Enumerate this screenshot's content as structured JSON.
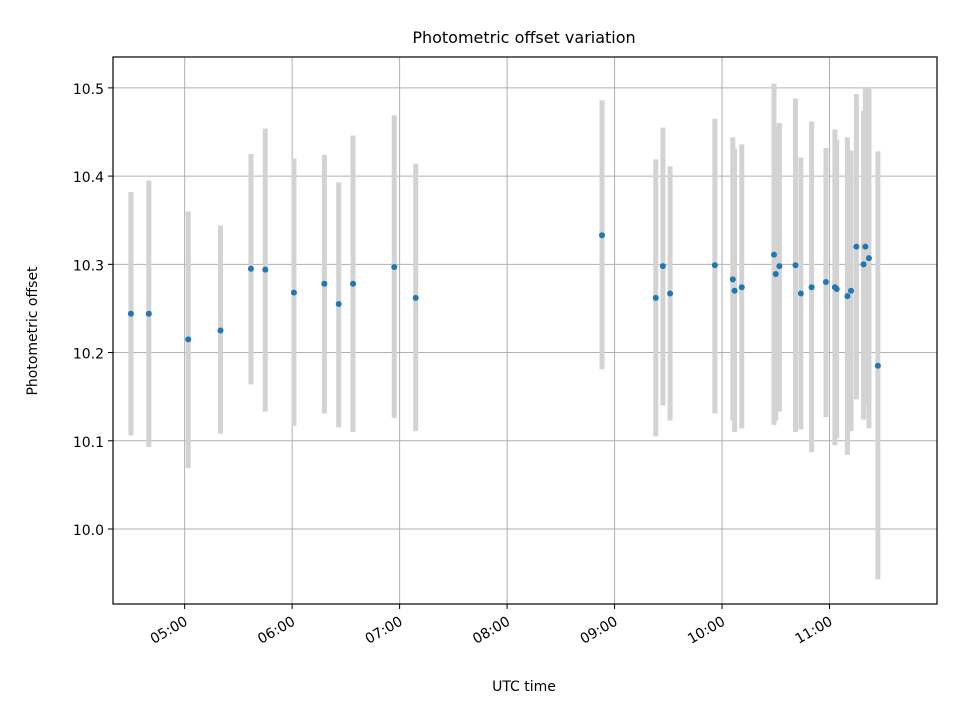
{
  "chart_data": {
    "type": "scatter",
    "title": "Photometric offset variation",
    "xlabel": "UTC time",
    "ylabel": "Photometric offset",
    "x_format": "HH:MM",
    "xlim": [
      "04:20",
      "12:00"
    ],
    "ylim": [
      9.915,
      10.535
    ],
    "x_ticks": [
      "05:00",
      "06:00",
      "07:00",
      "08:00",
      "09:00",
      "10:00",
      "11:00"
    ],
    "y_ticks": [
      10.0,
      10.1,
      10.2,
      10.3,
      10.4,
      10.5
    ],
    "grid": true,
    "series": [
      {
        "marker_color": "#1f77b4",
        "errorbar_color": "#d3d3d3",
        "points": [
          {
            "t": "04:30",
            "y": 10.244,
            "lo": 10.106,
            "hi": 10.382
          },
          {
            "t": "04:40",
            "y": 10.244,
            "lo": 10.093,
            "hi": 10.395
          },
          {
            "t": "05:02",
            "y": 10.215,
            "lo": 10.069,
            "hi": 10.36
          },
          {
            "t": "05:20",
            "y": 10.225,
            "lo": 10.108,
            "hi": 10.344
          },
          {
            "t": "05:37",
            "y": 10.295,
            "lo": 10.164,
            "hi": 10.425
          },
          {
            "t": "05:45",
            "y": 10.294,
            "lo": 10.133,
            "hi": 10.454
          },
          {
            "t": "06:01",
            "y": 10.268,
            "lo": 10.117,
            "hi": 10.42
          },
          {
            "t": "06:18",
            "y": 10.278,
            "lo": 10.131,
            "hi": 10.424
          },
          {
            "t": "06:26",
            "y": 10.255,
            "lo": 10.115,
            "hi": 10.393
          },
          {
            "t": "06:34",
            "y": 10.278,
            "lo": 10.11,
            "hi": 10.446
          },
          {
            "t": "06:57",
            "y": 10.297,
            "lo": 10.126,
            "hi": 10.469
          },
          {
            "t": "07:09",
            "y": 10.262,
            "lo": 10.111,
            "hi": 10.414
          },
          {
            "t": "08:53",
            "y": 10.333,
            "lo": 10.181,
            "hi": 10.486
          },
          {
            "t": "09:23",
            "y": 10.262,
            "lo": 10.105,
            "hi": 10.419
          },
          {
            "t": "09:27",
            "y": 10.298,
            "lo": 10.14,
            "hi": 10.455
          },
          {
            "t": "09:31",
            "y": 10.267,
            "lo": 10.123,
            "hi": 10.411
          },
          {
            "t": "09:56",
            "y": 10.299,
            "lo": 10.131,
            "hi": 10.465
          },
          {
            "t": "10:06",
            "y": 10.283,
            "lo": 10.123,
            "hi": 10.444
          },
          {
            "t": "10:07",
            "y": 10.27,
            "lo": 10.11,
            "hi": 10.431
          },
          {
            "t": "10:11",
            "y": 10.274,
            "lo": 10.114,
            "hi": 10.436
          },
          {
            "t": "10:29",
            "y": 10.311,
            "lo": 10.118,
            "hi": 10.505
          },
          {
            "t": "10:30",
            "y": 10.289,
            "lo": 10.123,
            "hi": 10.456
          },
          {
            "t": "10:32",
            "y": 10.298,
            "lo": 10.133,
            "hi": 10.46
          },
          {
            "t": "10:41",
            "y": 10.299,
            "lo": 10.11,
            "hi": 10.488
          },
          {
            "t": "10:44",
            "y": 10.267,
            "lo": 10.113,
            "hi": 10.421
          },
          {
            "t": "10:50",
            "y": 10.274,
            "lo": 10.087,
            "hi": 10.462
          },
          {
            "t": "10:58",
            "y": 10.28,
            "lo": 10.127,
            "hi": 10.432
          },
          {
            "t": "11:03",
            "y": 10.274,
            "lo": 10.095,
            "hi": 10.453
          },
          {
            "t": "11:04",
            "y": 10.272,
            "lo": 10.103,
            "hi": 10.441
          },
          {
            "t": "11:10",
            "y": 10.264,
            "lo": 10.084,
            "hi": 10.444
          },
          {
            "t": "11:12",
            "y": 10.27,
            "lo": 10.111,
            "hi": 10.429
          },
          {
            "t": "11:15",
            "y": 10.32,
            "lo": 10.147,
            "hi": 10.493
          },
          {
            "t": "11:19",
            "y": 10.3,
            "lo": 10.124,
            "hi": 10.474
          },
          {
            "t": "11:20",
            "y": 10.32,
            "lo": 10.14,
            "hi": 10.501
          },
          {
            "t": "11:22",
            "y": 10.307,
            "lo": 10.114,
            "hi": 10.5
          },
          {
            "t": "11:27",
            "y": 10.185,
            "lo": 9.943,
            "hi": 10.428
          }
        ]
      }
    ]
  }
}
